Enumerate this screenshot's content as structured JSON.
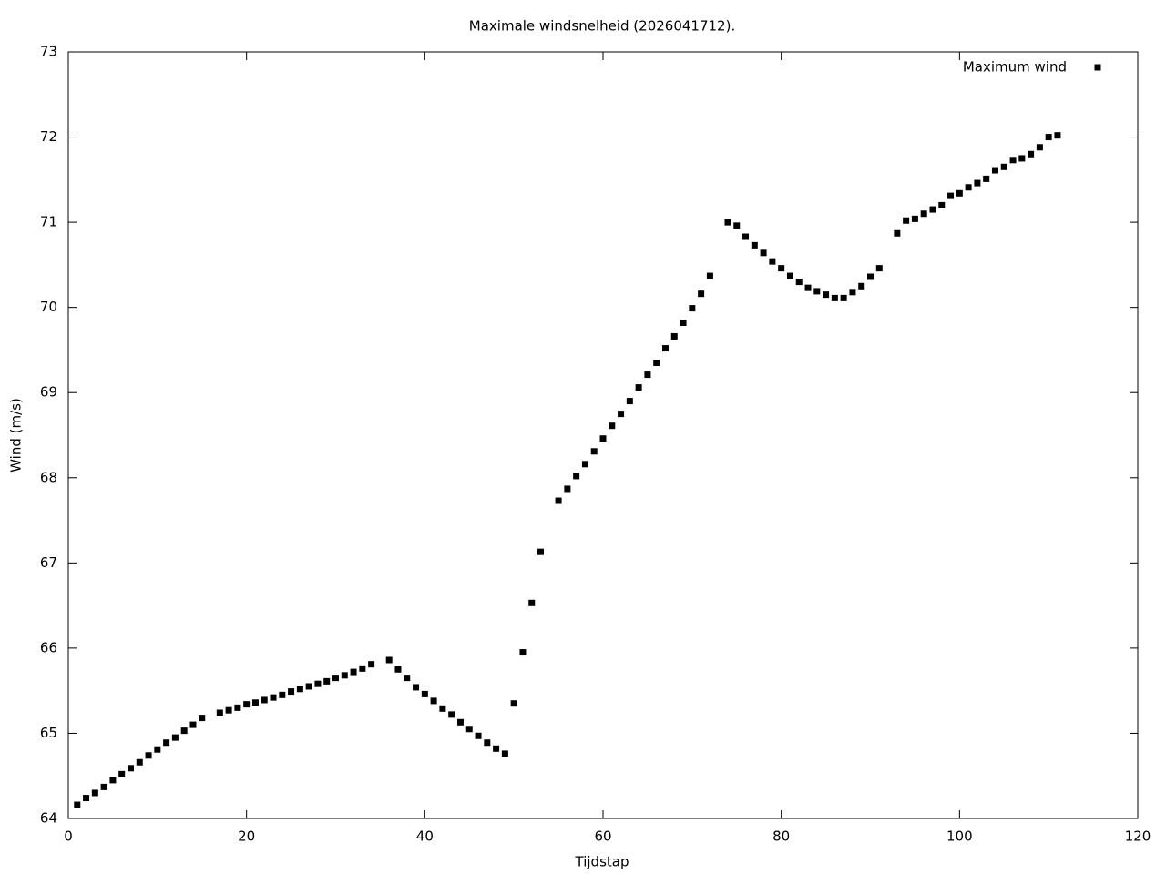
{
  "chart_data": {
    "type": "scatter",
    "title": "Maximale windsnelheid (2026041712).",
    "xlabel": "Tijdstap",
    "ylabel": "Wind (m/s)",
    "xlim": [
      0,
      120
    ],
    "xticks": [
      0,
      20,
      40,
      60,
      80,
      100,
      120
    ],
    "ylim": [
      64,
      73
    ],
    "yticks": [
      64,
      65,
      66,
      67,
      68,
      69,
      70,
      71,
      72,
      73
    ],
    "grid": false,
    "legend": "top-right",
    "x": [
      1,
      2,
      3,
      4,
      5,
      6,
      7,
      8,
      9,
      10,
      11,
      12,
      13,
      14,
      15,
      17,
      18,
      19,
      20,
      21,
      22,
      23,
      24,
      25,
      26,
      27,
      28,
      29,
      30,
      31,
      32,
      33,
      34,
      36,
      37,
      38,
      39,
      40,
      41,
      42,
      43,
      44,
      45,
      46,
      47,
      48,
      49,
      50,
      51,
      52,
      53,
      55,
      56,
      57,
      58,
      59,
      60,
      61,
      62,
      63,
      64,
      65,
      66,
      67,
      68,
      69,
      70,
      71,
      72,
      74,
      75,
      76,
      77,
      78,
      79,
      80,
      81,
      82,
      83,
      84,
      85,
      86,
      87,
      88,
      89,
      90,
      91,
      93,
      94,
      95,
      96,
      97,
      98,
      99,
      100,
      101,
      102,
      103,
      104,
      105,
      106,
      107,
      108,
      109,
      110,
      111
    ],
    "series": [
      {
        "name": "Maximum wind",
        "color": "#000000",
        "values": [
          64.16,
          64.24,
          64.3,
          64.37,
          64.45,
          64.52,
          64.59,
          64.66,
          64.74,
          64.81,
          64.89,
          64.95,
          65.03,
          65.1,
          65.18,
          65.24,
          65.27,
          65.3,
          65.34,
          65.36,
          65.39,
          65.42,
          65.45,
          65.49,
          65.52,
          65.55,
          65.58,
          65.61,
          65.65,
          65.68,
          65.72,
          65.76,
          65.81,
          65.86,
          65.75,
          65.65,
          65.54,
          65.46,
          65.38,
          65.29,
          65.22,
          65.13,
          65.05,
          64.97,
          64.89,
          64.82,
          64.76,
          65.35,
          65.95,
          66.53,
          67.13,
          67.73,
          67.87,
          68.02,
          68.16,
          68.31,
          68.46,
          68.61,
          68.75,
          68.9,
          69.06,
          69.21,
          69.35,
          69.52,
          69.66,
          69.82,
          69.99,
          70.16,
          70.37,
          71.0,
          70.96,
          70.83,
          70.73,
          70.64,
          70.54,
          70.46,
          70.37,
          70.3,
          70.23,
          70.19,
          70.15,
          70.11,
          70.11,
          70.18,
          70.25,
          70.36,
          70.46,
          70.87,
          71.02,
          71.04,
          71.1,
          71.15,
          71.2,
          71.31,
          71.34,
          71.41,
          71.46,
          71.51,
          71.61,
          71.65,
          71.73,
          71.75,
          71.8,
          71.88,
          72.0,
          72.02
        ]
      }
    ]
  }
}
